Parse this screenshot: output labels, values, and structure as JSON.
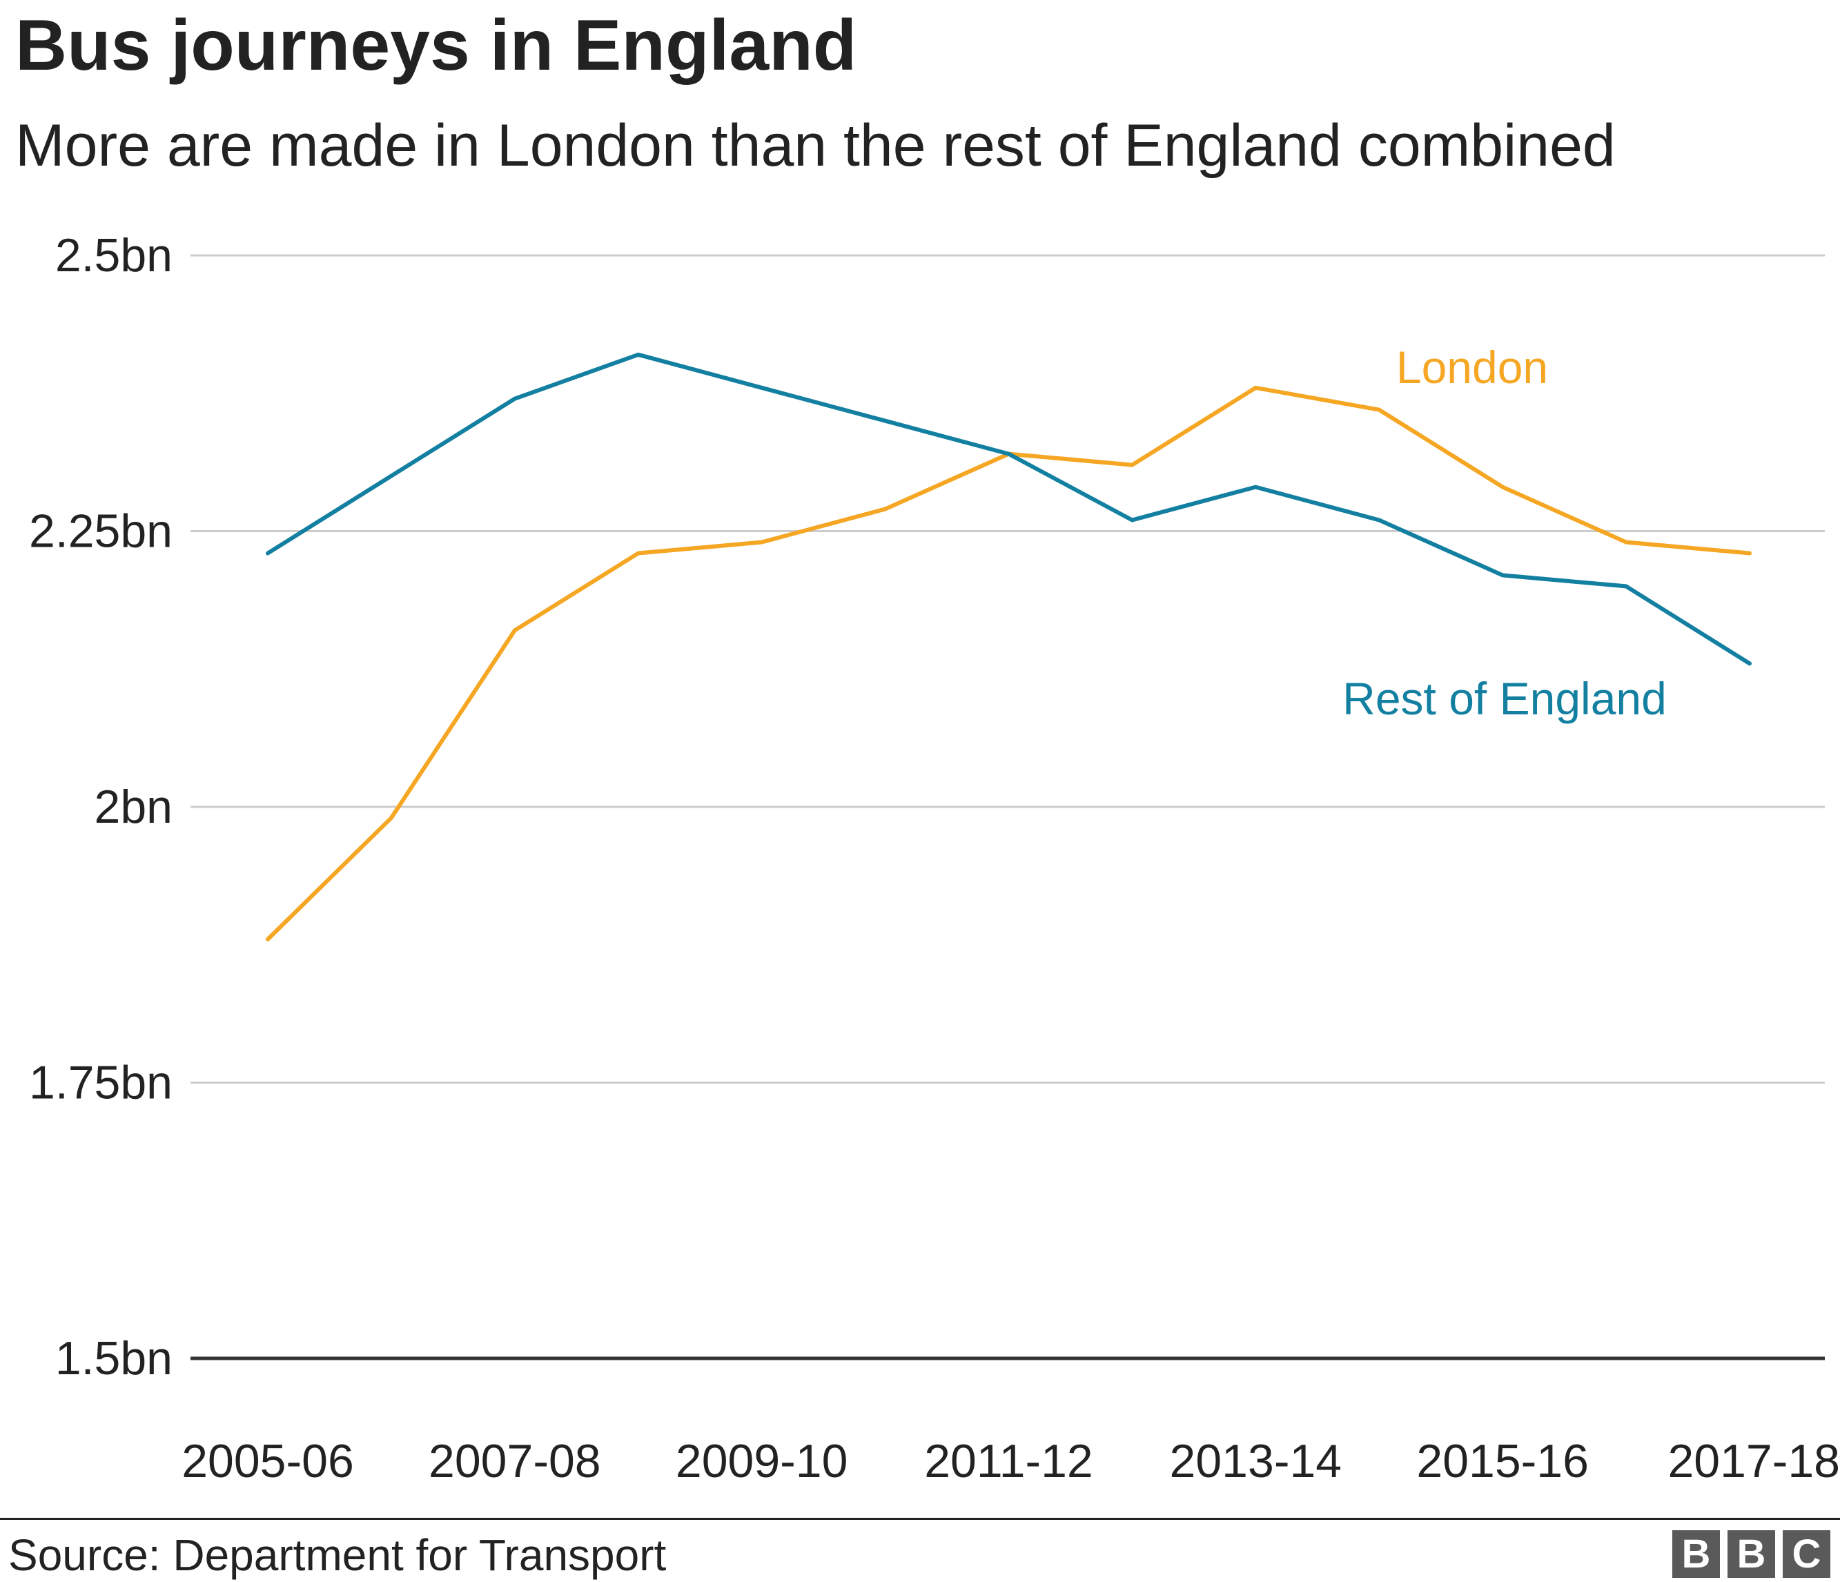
{
  "header": {
    "title": "Bus journeys in England",
    "subtitle": "More are made in London than the rest of England combined"
  },
  "footer": {
    "source": "Source: Department for Transport",
    "logo_letters": [
      "B",
      "B",
      "C"
    ]
  },
  "chart_data": {
    "type": "line",
    "title": "Bus journeys in England",
    "subtitle": "More are made in London than the rest of England combined",
    "xlabel": "",
    "ylabel": "",
    "categories": [
      "2005-06",
      "2006-07",
      "2007-08",
      "2008-09",
      "2009-10",
      "2010-11",
      "2011-12",
      "2012-13",
      "2013-14",
      "2014-15",
      "2015-16",
      "2016-17",
      "2017-18"
    ],
    "x_tick_labels": [
      "2005-06",
      "2007-08",
      "2009-10",
      "2011-12",
      "2013-14",
      "2015-16",
      "2017-18"
    ],
    "y_ticks": [
      1.5,
      1.75,
      2,
      2.25,
      2.5
    ],
    "y_tick_labels": [
      "1.5bn",
      "1.75bn",
      "2bn",
      "2.25bn",
      "2.5bn"
    ],
    "ylim": [
      1.5,
      2.5
    ],
    "unit": "bn",
    "grid": true,
    "legend": "direct labels at the ends of the lines",
    "series": [
      {
        "name": "London",
        "color": "#f5a623",
        "values": [
          1.88,
          1.99,
          2.16,
          2.23,
          2.24,
          2.27,
          2.32,
          2.31,
          2.38,
          2.36,
          2.29,
          2.24,
          2.23
        ]
      },
      {
        "name": "Rest of England",
        "color": "#1380a1",
        "values": [
          2.23,
          2.3,
          2.37,
          2.41,
          2.38,
          2.35,
          2.32,
          2.26,
          2.29,
          2.26,
          2.21,
          2.2,
          2.13
        ]
      }
    ],
    "colors": {
      "gridline": "#cccccc",
      "baseline": "#333333",
      "text": "#222222"
    }
  }
}
